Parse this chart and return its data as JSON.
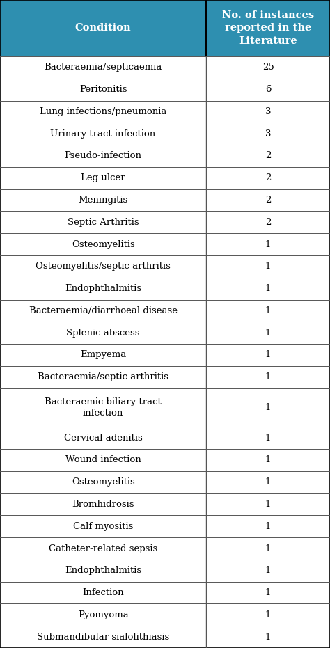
{
  "header_col1": "Condition",
  "header_col2": "No. of instances\nreported in the\nLiterature",
  "header_bg": "#2e8fb0",
  "header_text_color": "#ffffff",
  "rows": [
    {
      "condition": "Bacteraemia/septicaemia",
      "count": "25"
    },
    {
      "condition": "Peritonitis",
      "count": "6"
    },
    {
      "condition": "Lung infections/pneumonia",
      "count": "3"
    },
    {
      "condition": "Urinary tract infection",
      "count": "3"
    },
    {
      "condition": "Pseudo-infection",
      "count": "2"
    },
    {
      "condition": "Leg ulcer",
      "count": "2"
    },
    {
      "condition": "Meningitis",
      "count": "2"
    },
    {
      "condition": "Septic Arthritis",
      "count": "2"
    },
    {
      "condition": "Osteomyelitis",
      "count": "1"
    },
    {
      "condition": "Osteomyelitis/septic arthritis",
      "count": "1"
    },
    {
      "condition": "Endophthalmitis",
      "count": "1"
    },
    {
      "condition": "Bacteraemia/diarrhoeal disease",
      "count": "1"
    },
    {
      "condition": "Splenic abscess",
      "count": "1"
    },
    {
      "condition": "Empyema",
      "count": "1"
    },
    {
      "condition": "Bacteraemia/septic arthritis",
      "count": "1"
    },
    {
      "condition": "Bacteraemic biliary tract\ninfection",
      "count": "1"
    },
    {
      "condition": "Cervical adenitis",
      "count": "1"
    },
    {
      "condition": "Wound infection",
      "count": "1"
    },
    {
      "condition": "Osteomyelitis",
      "count": "1"
    },
    {
      "condition": "Bromhidrosis",
      "count": "1"
    },
    {
      "condition": "Calf myositis",
      "count": "1"
    },
    {
      "condition": "Catheter-related sepsis",
      "count": "1"
    },
    {
      "condition": "Endophthalmitis",
      "count": "1"
    },
    {
      "condition": "Infection",
      "count": "1"
    },
    {
      "condition": "Pyomyoma",
      "count": "1"
    },
    {
      "condition": "Submandibular sialolithiasis",
      "count": "1"
    }
  ],
  "col_split": 0.625,
  "bg_color": "#ffffff",
  "row_text_color": "#000000",
  "line_color": "#555555",
  "row_font_size": 9.5,
  "header_font_size": 10.5,
  "fig_width": 4.74,
  "fig_height": 9.31,
  "dpi": 100
}
